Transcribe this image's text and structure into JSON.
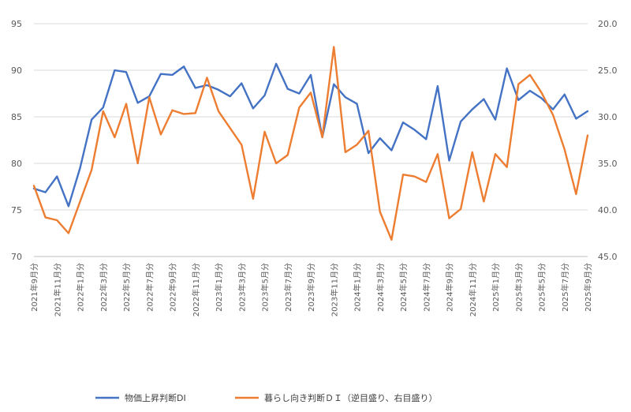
{
  "chart_data": {
    "type": "line",
    "title": "",
    "legend_position": "bottom",
    "grid": true,
    "left_axis": {
      "min": 70,
      "max": 95,
      "step": 5,
      "ticks": [
        "70",
        "75",
        "80",
        "85",
        "90",
        "95"
      ]
    },
    "right_axis": {
      "min": 20,
      "max": 45,
      "step": 5,
      "reversed": true,
      "ticks": [
        "20.0",
        "25.0",
        "30.0",
        "35.0",
        "40.0",
        "45.0"
      ]
    },
    "x_labels": [
      "2021年9月分",
      "2021年11月分",
      "2022年1月分",
      "2022年3月分",
      "2022年5月分",
      "2022年7月分",
      "2022年9月分",
      "2022年11月分",
      "2023年1月分",
      "2023年3月分",
      "2023年5月分",
      "2023年7月分",
      "2023年9月分",
      "2023年11月分",
      "2024年1月分",
      "2024年3月分",
      "2024年5月分",
      "2024年7月分",
      "2024年9月分",
      "2024年11月分",
      "2025年1月分",
      "2025年3月分",
      "2025年5月分",
      "2025年7月分",
      "2025年9月分"
    ],
    "series": [
      {
        "name": "物価上昇判断DI",
        "axis": "left",
        "color": "#4472C4",
        "values": [
          77.3,
          76.9,
          78.6,
          75.4,
          79.5,
          84.7,
          86.0,
          90.0,
          89.8,
          86.5,
          87.2,
          89.6,
          89.5,
          90.4,
          88.1,
          88.4,
          87.9,
          87.2,
          88.6,
          85.9,
          87.3,
          90.7,
          88.0,
          87.5,
          89.5,
          82.8,
          88.5,
          87.1,
          86.4,
          81.1,
          82.7,
          81.4,
          84.4,
          83.6,
          82.6,
          88.3,
          80.3,
          84.5,
          85.8,
          86.9,
          84.7,
          90.2,
          86.8,
          87.8,
          87.0,
          85.8,
          87.4,
          84.8,
          85.6
        ]
      },
      {
        "name": "暮らし向き判断ＤＩ（逆目盛り、右目盛り）",
        "axis": "right",
        "color": "#ED7D31",
        "values": [
          37.4,
          40.8,
          41.1,
          42.5,
          39.1,
          35.7,
          29.4,
          32.2,
          28.6,
          35.0,
          27.9,
          31.9,
          29.3,
          29.7,
          29.6,
          25.8,
          29.4,
          31.2,
          33.0,
          38.8,
          31.6,
          35.0,
          34.1,
          29.0,
          27.4,
          32.2,
          22.5,
          33.8,
          33.0,
          31.5,
          40.2,
          43.2,
          36.2,
          36.4,
          37.0,
          34.0,
          40.9,
          39.9,
          33.8,
          39.1,
          34.0,
          35.4,
          26.5,
          25.5,
          27.4,
          29.8,
          33.5,
          38.3,
          32.0
        ]
      }
    ]
  }
}
